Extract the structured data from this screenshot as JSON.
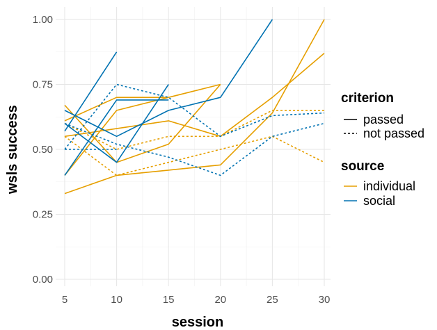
{
  "chart_data": {
    "type": "line",
    "xlabel": "session",
    "ylabel": "wsls success",
    "x_ticks": [
      "5",
      "10",
      "15",
      "20",
      "25",
      "30"
    ],
    "y_ticks": [
      "0.00",
      "0.25",
      "0.50",
      "0.75",
      "1.00"
    ],
    "xlim": [
      5,
      30
    ],
    "ylim": [
      0,
      1
    ],
    "grid": true,
    "legend_position": "right",
    "legend": {
      "criterion": {
        "title": "criterion",
        "items": [
          {
            "label": "passed",
            "dash": "solid"
          },
          {
            "label": "not passed",
            "dash": "dashed"
          }
        ]
      },
      "source": {
        "title": "source",
        "items": [
          {
            "label": "individual",
            "color": "#E69F00"
          },
          {
            "label": "social",
            "color": "#0072B2"
          }
        ]
      }
    },
    "series": [
      {
        "source": "individual",
        "criterion": "passed",
        "x": [
          5,
          10,
          15
        ],
        "y": [
          0.4,
          0.65,
          0.7
        ]
      },
      {
        "source": "individual",
        "criterion": "passed",
        "x": [
          5,
          10,
          15,
          20
        ],
        "y": [
          0.55,
          0.58,
          0.61,
          0.55
        ]
      },
      {
        "source": "individual",
        "criterion": "passed",
        "x": [
          5,
          10,
          15,
          20
        ],
        "y": [
          0.61,
          0.7,
          0.7,
          0.75
        ]
      },
      {
        "source": "individual",
        "criterion": "passed",
        "x": [
          5,
          10,
          15,
          20
        ],
        "y": [
          0.67,
          0.45,
          0.52,
          0.75
        ]
      },
      {
        "source": "individual",
        "criterion": "passed",
        "x": [
          5,
          10,
          15,
          20,
          25,
          30
        ],
        "y": [
          0.33,
          0.4,
          0.42,
          0.44,
          0.64,
          1.0
        ]
      },
      {
        "source": "individual",
        "criterion": "passed",
        "x": [
          20,
          25,
          30
        ],
        "y": [
          0.55,
          0.7,
          0.87
        ]
      },
      {
        "source": "individual",
        "criterion": "not passed",
        "x": [
          5,
          10,
          15,
          20,
          25,
          30
        ],
        "y": [
          0.6,
          0.5,
          0.55,
          0.55,
          0.65,
          0.65
        ]
      },
      {
        "source": "individual",
        "criterion": "not passed",
        "x": [
          5,
          10,
          15,
          20,
          25,
          30
        ],
        "y": [
          0.55,
          0.4,
          0.45,
          0.5,
          0.55,
          0.45
        ]
      },
      {
        "source": "social",
        "criterion": "passed",
        "x": [
          5,
          10
        ],
        "y": [
          0.57,
          0.875
        ]
      },
      {
        "source": "social",
        "criterion": "passed",
        "x": [
          5,
          10,
          15
        ],
        "y": [
          0.4,
          0.69,
          0.69
        ]
      },
      {
        "source": "social",
        "criterion": "passed",
        "x": [
          5,
          10,
          15
        ],
        "y": [
          0.6,
          0.45,
          0.75
        ]
      },
      {
        "source": "social",
        "criterion": "passed",
        "x": [
          5,
          10,
          15,
          20,
          25
        ],
        "y": [
          0.65,
          0.55,
          0.65,
          0.7,
          1.0
        ]
      },
      {
        "source": "social",
        "criterion": "not passed",
        "x": [
          5,
          10,
          15,
          20,
          25,
          30
        ],
        "y": [
          0.5,
          0.75,
          0.7,
          0.55,
          0.63,
          0.64
        ]
      },
      {
        "source": "social",
        "criterion": "not passed",
        "x": [
          5,
          10,
          15,
          20,
          25,
          30
        ],
        "y": [
          0.6,
          0.52,
          0.47,
          0.4,
          0.55,
          0.6
        ]
      },
      {
        "source": "social",
        "criterion": "not passed",
        "x": [
          5,
          10
        ],
        "y": [
          0.5,
          0.5
        ]
      }
    ]
  }
}
